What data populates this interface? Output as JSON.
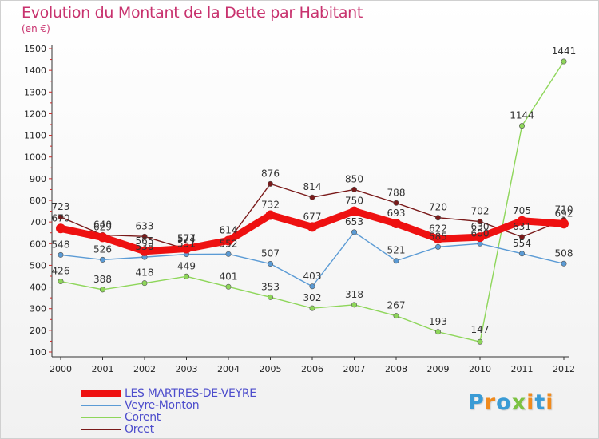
{
  "title": "Evolution du Montant de la Dette par Habitant",
  "subtitle": "(en €)",
  "brand": {
    "letters": [
      "P",
      "r",
      "o",
      "x",
      "i",
      "t",
      "i"
    ],
    "colors": [
      "#3a9bd5",
      "#f08a1c",
      "#3a9bd5",
      "#7cc242",
      "#f08a1c",
      "#3a9bd5",
      "#f08a1c"
    ]
  },
  "chart_data": {
    "type": "line",
    "categories": [
      "2000",
      "2001",
      "2002",
      "2003",
      "2004",
      "2005",
      "2006",
      "2007",
      "2008",
      "2009",
      "2010",
      "2011",
      "2012"
    ],
    "ylim": [
      100,
      1500
    ],
    "yticks": [
      100,
      200,
      300,
      400,
      500,
      600,
      700,
      800,
      900,
      1000,
      1100,
      1200,
      1300,
      1400,
      1500
    ],
    "grid": false,
    "legend_position": "bottom-left",
    "series": [
      {
        "name": "Orcet",
        "color": "#7a1a1a",
        "values": [
          723,
          640,
          633,
          574,
          614,
          876,
          814,
          850,
          788,
          720,
          702,
          631,
          710
        ]
      },
      {
        "name": "Corent",
        "color": "#8ed65a",
        "values": [
          426,
          388,
          418,
          449,
          401,
          353,
          302,
          318,
          267,
          193,
          147,
          1144,
          1441
        ]
      },
      {
        "name": "Veyre-Monton",
        "color": "#5b9bd5",
        "values": [
          548,
          526,
          538,
          551,
          552,
          507,
          403,
          653,
          521,
          585,
          600,
          554,
          508
        ]
      },
      {
        "name": "LES MARTRES-DE-VEYRE",
        "color": "#ee1111",
        "values": [
          670,
          629,
          565,
          577,
          614,
          732,
          677,
          750,
          693,
          622,
          630,
          705,
          692
        ]
      }
    ],
    "legend_order": [
      "LES MARTRES-DE-VEYRE",
      "Veyre-Monton",
      "Corent",
      "Orcet"
    ]
  }
}
